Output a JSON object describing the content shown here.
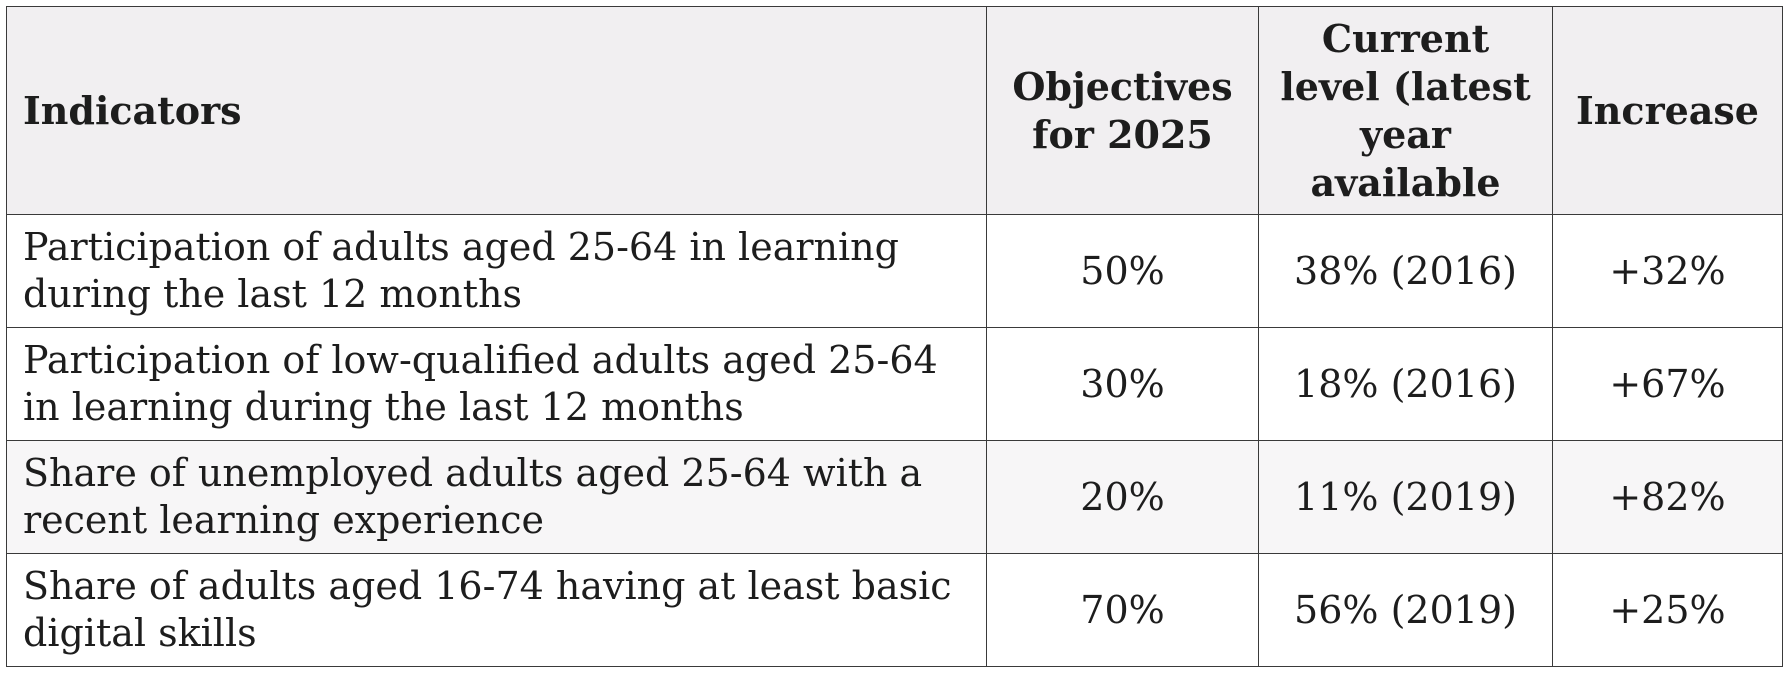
{
  "table": {
    "headers": [
      "Indicators",
      "Objectives for 2025",
      "Current level (latest year available",
      "Increase"
    ],
    "rows": [
      {
        "indicator": "Participation of adults aged 25-64 in learning during the last 12 months",
        "objective": "50%",
        "current": "38% (2016)",
        "increase": "+32%"
      },
      {
        "indicator": "Participation of low-qualified adults aged 25-64 in learning during the last 12 months",
        "objective": "30%",
        "current": "18% (2016)",
        "increase": "+67%"
      },
      {
        "indicator": "Share of unemployed adults aged 25-64 with a recent learning experience",
        "objective": "20%",
        "current": "11% (2019)",
        "increase": "+82%"
      },
      {
        "indicator": "Share of adults aged 16-74 having at least basic digital skills",
        "objective": "70%",
        "current": "56% (2019)",
        "increase": "+25%"
      }
    ]
  }
}
